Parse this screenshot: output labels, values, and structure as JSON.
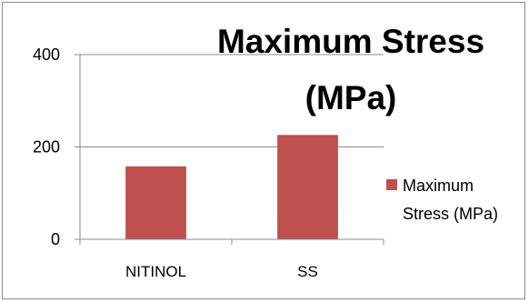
{
  "chart_data": {
    "type": "bar",
    "title_lines": [
      "Maximum Stress",
      "(MPa)"
    ],
    "categories": [
      "NITINOL",
      "SS"
    ],
    "series": [
      {
        "name_lines": [
          "Maximum",
          "Stress (MPa)"
        ],
        "values": [
          158,
          226
        ],
        "color": "#c0504d"
      }
    ],
    "ylim": [
      0,
      400
    ],
    "yticks": [
      "0",
      "200",
      "400"
    ],
    "grid": true,
    "legend": "right"
  }
}
